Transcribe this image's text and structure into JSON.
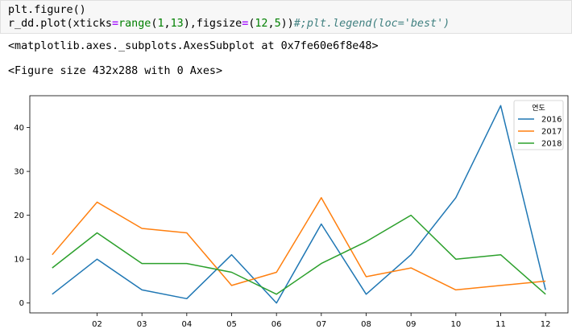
{
  "code": {
    "line1": "plt.figure()",
    "line2_parts": [
      {
        "t": "r_dd.plot(xticks",
        "c": ""
      },
      {
        "t": "=",
        "c": "tk-kw"
      },
      {
        "t": "range",
        "c": "tk-builtin"
      },
      {
        "t": "(",
        "c": ""
      },
      {
        "t": "1",
        "c": "tk-num"
      },
      {
        "t": ",",
        "c": ""
      },
      {
        "t": "13",
        "c": "tk-num"
      },
      {
        "t": "),figsize",
        "c": ""
      },
      {
        "t": "=",
        "c": "tk-kw"
      },
      {
        "t": "(",
        "c": ""
      },
      {
        "t": "12",
        "c": "tk-num"
      },
      {
        "t": ",",
        "c": ""
      },
      {
        "t": "5",
        "c": "tk-num"
      },
      {
        "t": "))",
        "c": ""
      },
      {
        "t": "#;plt.legend(loc='best')",
        "c": "tk-comment"
      }
    ]
  },
  "outputs": {
    "axes_repr": "<matplotlib.axes._subplots.AxesSubplot at 0x7fe60e6f8e48>",
    "figure_repr": "<Figure size 432x288 with 0 Axes>"
  },
  "chart_data": {
    "type": "line",
    "x": [
      1,
      2,
      3,
      4,
      5,
      6,
      7,
      8,
      9,
      10,
      11,
      12
    ],
    "tick_labels": [
      "02",
      "03",
      "04",
      "05",
      "06",
      "07",
      "08",
      "09",
      "10",
      "11",
      "12"
    ],
    "tick_positions": [
      2,
      3,
      4,
      5,
      6,
      7,
      8,
      9,
      10,
      11,
      12
    ],
    "yticks": [
      0,
      10,
      20,
      30,
      40
    ],
    "ylim": [
      -2.25,
      47.25
    ],
    "xlim": [
      0.5,
      12.5
    ],
    "legend_title": "연도",
    "legend_position": "top-right",
    "grid": false,
    "series": [
      {
        "name": "2016",
        "color": "#1f77b4",
        "values": [
          2,
          10,
          3,
          1,
          11,
          0,
          18,
          2,
          11,
          24,
          45,
          3
        ]
      },
      {
        "name": "2017",
        "color": "#ff7f0e",
        "values": [
          11,
          23,
          17,
          16,
          4,
          7,
          24,
          6,
          8,
          3,
          4,
          5
        ]
      },
      {
        "name": "2018",
        "color": "#2ca02c",
        "values": [
          8,
          16,
          9,
          9,
          7,
          2,
          9,
          14,
          20,
          10,
          11,
          2
        ]
      }
    ]
  }
}
